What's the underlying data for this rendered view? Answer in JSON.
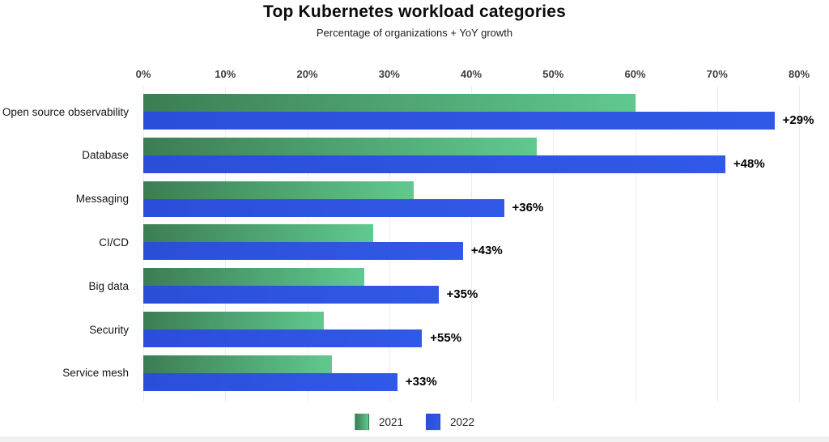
{
  "header": {
    "title": "Top Kubernetes workload categories",
    "subtitle": "Percentage of organizations + YoY growth"
  },
  "chart_data": {
    "type": "bar",
    "orientation": "horizontal",
    "title": "Top Kubernetes workload categories",
    "subtitle": "Percentage of organizations + YoY growth",
    "categories": [
      "Open source observability",
      "Database",
      "Messaging",
      "CI/CD",
      "Big data",
      "Security",
      "Service mesh"
    ],
    "series": [
      {
        "name": "2021",
        "values": [
          60,
          48,
          33,
          28,
          27,
          22,
          23
        ]
      },
      {
        "name": "2022",
        "values": [
          77,
          71,
          44,
          39,
          36,
          34,
          31
        ]
      }
    ],
    "growth_labels": [
      "+29%",
      "+48%",
      "+36%",
      "+43%",
      "+35%",
      "+55%",
      "+33%"
    ],
    "x_ticks": [
      "0%",
      "10%",
      "20%",
      "30%",
      "40%",
      "50%",
      "60%",
      "70%",
      "80%"
    ],
    "xlim": [
      0,
      80
    ],
    "grid": true,
    "legend_position": "bottom",
    "colors": {
      "series_2021_gradient": [
        "#3C7D53",
        "#60C98F"
      ],
      "series_2022_gradient": [
        "#2B4ED8",
        "#3159E7"
      ],
      "gridline": "#ECECEC",
      "tick_text": "#3D3D3D",
      "category_text": "#141414",
      "growth_text": "#000000"
    }
  }
}
